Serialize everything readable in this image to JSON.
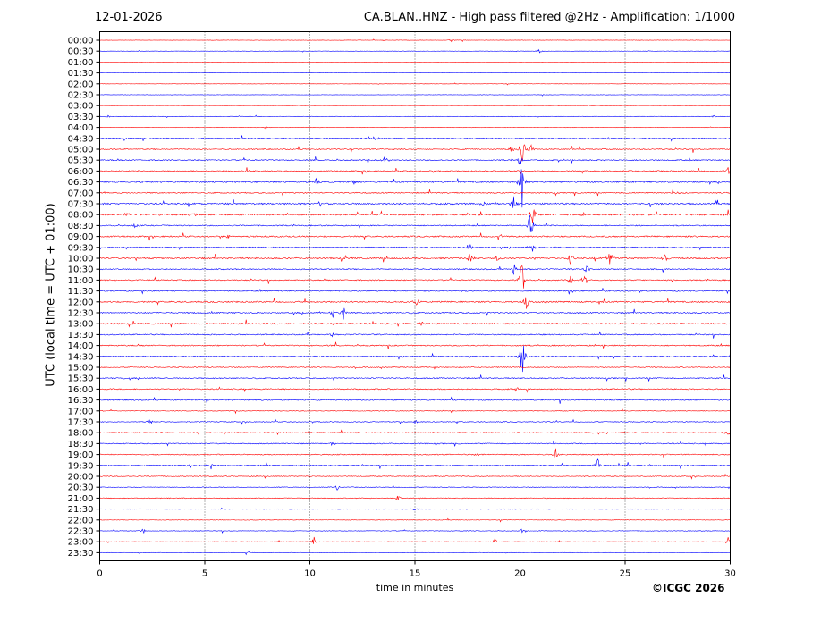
{
  "header": {
    "date": "12-01-2026",
    "title": "CA.BLAN..HNZ - High pass filtered @2Hz - Amplification: 1/1000"
  },
  "footer": {
    "copyright": "©ICGC 2026"
  },
  "chart_data": {
    "type": "line",
    "title": "CA.BLAN..HNZ - High pass filtered @2Hz - Amplification: 1/1000",
    "xlabel": "time in minutes",
    "ylabel": "UTC (local time = UTC + 01:00)",
    "xlim": [
      0,
      30
    ],
    "x_ticks": [
      0,
      5,
      10,
      15,
      20,
      25,
      30
    ],
    "vertical_grid": "dotted at 5, 10, 15, 20, 25",
    "trace_colors": [
      "#ff0000",
      "#0000ff"
    ],
    "rows": [
      "00:00",
      "00:30",
      "01:00",
      "01:30",
      "02:00",
      "02:30",
      "03:00",
      "03:30",
      "04:00",
      "04:30",
      "05:00",
      "05:30",
      "06:00",
      "06:30",
      "07:00",
      "07:30",
      "08:00",
      "08:30",
      "09:00",
      "09:30",
      "10:00",
      "10:30",
      "11:00",
      "11:30",
      "12:00",
      "12:30",
      "13:00",
      "13:30",
      "14:00",
      "14:30",
      "15:00",
      "15:30",
      "16:00",
      "16:30",
      "17:00",
      "17:30",
      "18:00",
      "18:30",
      "19:00",
      "19:30",
      "20:00",
      "20:30",
      "21:00",
      "21:30",
      "22:00",
      "22:30",
      "23:00",
      "23:30"
    ],
    "noise_level": [
      0.3,
      0.3,
      0.25,
      0.25,
      0.3,
      0.3,
      0.25,
      0.4,
      0.3,
      0.9,
      0.9,
      1.0,
      1.0,
      1.3,
      1.0,
      1.4,
      1.4,
      1.0,
      1.2,
      1.0,
      1.3,
      1.0,
      1.0,
      1.0,
      1.2,
      1.1,
      1.2,
      1.0,
      1.0,
      0.9,
      0.8,
      1.0,
      1.0,
      1.0,
      0.6,
      0.7,
      0.9,
      0.9,
      0.9,
      0.9,
      0.7,
      0.6,
      0.7,
      0.6,
      0.5,
      0.5,
      0.4,
      0.3
    ],
    "events": [
      {
        "row": 0,
        "min": 13.5,
        "amp": 2
      },
      {
        "row": 0,
        "min": 16.7,
        "amp": 3
      },
      {
        "row": 0,
        "min": 17.3,
        "amp": 2
      },
      {
        "row": 1,
        "min": 20.9,
        "amp": 3
      },
      {
        "row": 7,
        "min": 0.4,
        "amp": 2
      },
      {
        "row": 7,
        "min": 29.2,
        "amp": 2
      },
      {
        "row": 8,
        "min": 7.9,
        "amp": 2
      },
      {
        "row": 9,
        "min": 13.1,
        "amp": 4
      },
      {
        "row": 9,
        "min": 24.2,
        "amp": 3
      },
      {
        "row": 10,
        "min": 19.6,
        "amp": 5
      },
      {
        "row": 10,
        "min": 20.1,
        "amp": 20
      },
      {
        "row": 10,
        "min": 20.5,
        "amp": 8
      },
      {
        "row": 11,
        "min": 20.0,
        "amp": 8
      },
      {
        "row": 11,
        "min": 13.6,
        "amp": 4
      },
      {
        "row": 12,
        "min": 7.0,
        "amp": 4
      },
      {
        "row": 12,
        "min": 29.9,
        "amp": 6
      },
      {
        "row": 13,
        "min": 10.3,
        "amp": 4
      },
      {
        "row": 13,
        "min": 12.1,
        "amp": 4
      },
      {
        "row": 13,
        "min": 20.1,
        "amp": 30
      },
      {
        "row": 14,
        "min": 27.5,
        "amp": 3
      },
      {
        "row": 15,
        "min": 10.5,
        "amp": 4
      },
      {
        "row": 15,
        "min": 19.7,
        "amp": 10
      },
      {
        "row": 15,
        "min": 18.3,
        "amp": 4
      },
      {
        "row": 16,
        "min": 1.3,
        "amp": 3
      },
      {
        "row": 16,
        "min": 4.5,
        "amp": 3
      },
      {
        "row": 16,
        "min": 20.6,
        "amp": 12
      },
      {
        "row": 16,
        "min": 23.0,
        "amp": 3
      },
      {
        "row": 17,
        "min": 1.7,
        "amp": 4
      },
      {
        "row": 17,
        "min": 20.5,
        "amp": 20
      },
      {
        "row": 18,
        "min": 6.1,
        "amp": 3
      },
      {
        "row": 18,
        "min": 19.0,
        "amp": 5
      },
      {
        "row": 19,
        "min": 17.6,
        "amp": 10
      },
      {
        "row": 19,
        "min": 20.6,
        "amp": 5
      },
      {
        "row": 20,
        "min": 17.6,
        "amp": 8
      },
      {
        "row": 20,
        "min": 24.3,
        "amp": 12
      },
      {
        "row": 20,
        "min": 26.9,
        "amp": 5
      },
      {
        "row": 20,
        "min": 22.4,
        "amp": 10
      },
      {
        "row": 20,
        "min": 18.9,
        "amp": 6
      },
      {
        "row": 21,
        "min": 23.2,
        "amp": 8
      },
      {
        "row": 21,
        "min": 19.7,
        "amp": 8
      },
      {
        "row": 22,
        "min": 20.1,
        "amp": 25
      },
      {
        "row": 22,
        "min": 22.4,
        "amp": 6
      },
      {
        "row": 22,
        "min": 23.1,
        "amp": 6
      },
      {
        "row": 24,
        "min": 15.1,
        "amp": 6
      },
      {
        "row": 24,
        "min": 20.3,
        "amp": 8
      },
      {
        "row": 25,
        "min": 11.6,
        "amp": 9
      },
      {
        "row": 25,
        "min": 11.1,
        "amp": 6
      },
      {
        "row": 26,
        "min": 15.3,
        "amp": 4
      },
      {
        "row": 27,
        "min": 11.0,
        "amp": 4
      },
      {
        "row": 29,
        "min": 20.1,
        "amp": 30
      },
      {
        "row": 32,
        "min": 19.8,
        "amp": 5
      },
      {
        "row": 33,
        "min": 21.3,
        "amp": 3
      },
      {
        "row": 35,
        "min": 2.4,
        "amp": 4
      },
      {
        "row": 35,
        "min": 15.0,
        "amp": 3
      },
      {
        "row": 36,
        "min": 29.9,
        "amp": 4
      },
      {
        "row": 36,
        "min": 9.9,
        "amp": 3
      },
      {
        "row": 37,
        "min": 11.1,
        "amp": 3
      },
      {
        "row": 38,
        "min": 21.7,
        "amp": 8
      },
      {
        "row": 38,
        "min": 17.9,
        "amp": 3
      },
      {
        "row": 39,
        "min": 23.7,
        "amp": 10
      },
      {
        "row": 39,
        "min": 4.3,
        "amp": 4
      },
      {
        "row": 39,
        "min": 5.3,
        "amp": 4
      },
      {
        "row": 41,
        "min": 11.3,
        "amp": 3
      },
      {
        "row": 42,
        "min": 14.2,
        "amp": 4
      },
      {
        "row": 43,
        "min": 15.0,
        "amp": 4
      },
      {
        "row": 45,
        "min": 2.1,
        "amp": 4
      },
      {
        "row": 45,
        "min": 20.1,
        "amp": 3
      },
      {
        "row": 46,
        "min": 10.2,
        "amp": 6
      },
      {
        "row": 46,
        "min": 18.8,
        "amp": 4
      },
      {
        "row": 46,
        "min": 29.9,
        "amp": 5
      },
      {
        "row": 47,
        "min": 7.0,
        "amp": 3
      }
    ]
  }
}
